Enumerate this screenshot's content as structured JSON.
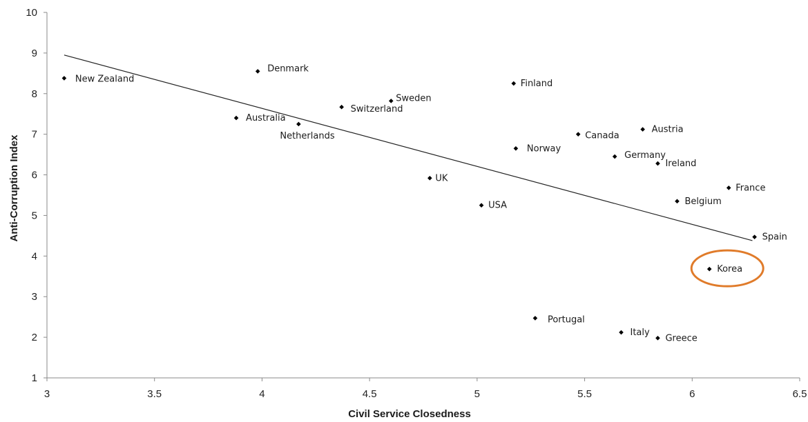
{
  "chart_data": {
    "type": "scatter",
    "title": "",
    "xlabel": "Civil Service Closedness",
    "ylabel": "Anti-Corruption Index",
    "xlim": [
      3,
      6.5
    ],
    "ylim": [
      1,
      10
    ],
    "xticks": [
      "3",
      "3.5",
      "4",
      "4.5",
      "5",
      "5.5",
      "6",
      "6.5"
    ],
    "yticks": [
      "1",
      "2",
      "3",
      "4",
      "5",
      "6",
      "7",
      "8",
      "9",
      "10"
    ],
    "grid": false,
    "legend": "none",
    "marker_color": "#000000",
    "highlight_color": "#e07b2a",
    "highlighted": "Korea",
    "trendline": {
      "x": [
        3.08,
        6.28
      ],
      "y": [
        8.95,
        4.38
      ]
    },
    "points": [
      {
        "label": "New Zealand",
        "x": 3.08,
        "y": 8.38
      },
      {
        "label": "Denmark",
        "x": 3.98,
        "y": 8.55
      },
      {
        "label": "Australia",
        "x": 3.88,
        "y": 7.4
      },
      {
        "label": "Netherlands",
        "x": 4.17,
        "y": 7.25
      },
      {
        "label": "Switzerland",
        "x": 4.37,
        "y": 7.67
      },
      {
        "label": "Sweden",
        "x": 4.6,
        "y": 7.82
      },
      {
        "label": "Finland",
        "x": 5.17,
        "y": 8.25
      },
      {
        "label": "UK",
        "x": 4.78,
        "y": 5.92
      },
      {
        "label": "USA",
        "x": 5.02,
        "y": 5.25
      },
      {
        "label": "Norway",
        "x": 5.18,
        "y": 6.65
      },
      {
        "label": "Canada",
        "x": 5.47,
        "y": 7.0
      },
      {
        "label": "Austria",
        "x": 5.77,
        "y": 7.12
      },
      {
        "label": "Germany",
        "x": 5.64,
        "y": 6.45
      },
      {
        "label": "Ireland",
        "x": 5.84,
        "y": 6.28
      },
      {
        "label": "France",
        "x": 6.17,
        "y": 5.68
      },
      {
        "label": "Belgium",
        "x": 5.93,
        "y": 5.35
      },
      {
        "label": "Spain",
        "x": 6.29,
        "y": 4.47
      },
      {
        "label": "Korea",
        "x": 6.08,
        "y": 3.68
      },
      {
        "label": "Portugal",
        "x": 5.27,
        "y": 2.47
      },
      {
        "label": "Italy",
        "x": 5.67,
        "y": 2.12
      },
      {
        "label": "Greece",
        "x": 5.84,
        "y": 1.98
      }
    ]
  }
}
